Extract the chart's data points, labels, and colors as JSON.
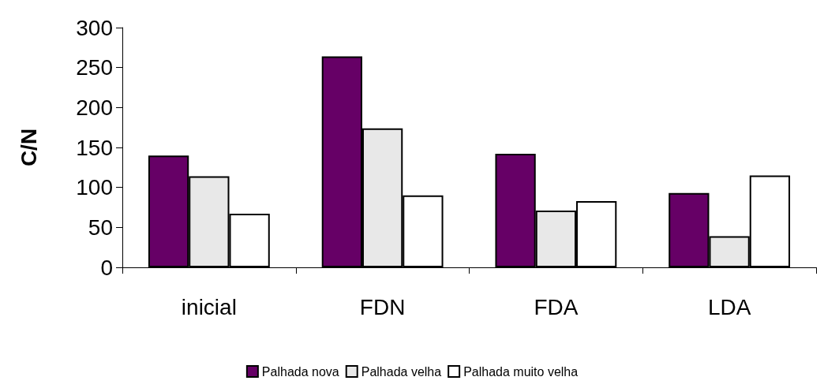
{
  "chart_data": {
    "type": "bar",
    "ylabel": "C/N",
    "categories": [
      "inicial",
      "FDN",
      "FDA",
      "LDA"
    ],
    "series": [
      {
        "name": "Palhada nova",
        "color": "#660066",
        "values": [
          140,
          264,
          142,
          93
        ]
      },
      {
        "name": "Palhada velha",
        "color": "#e8e8e8",
        "values": [
          114,
          174,
          71,
          39
        ]
      },
      {
        "name": "Palhada muito velha",
        "color": "#ffffff",
        "values": [
          67,
          90,
          83,
          115
        ]
      }
    ],
    "ylim": [
      0,
      300
    ],
    "yticks": [
      0,
      50,
      100,
      150,
      200,
      250,
      300
    ],
    "grid": false,
    "legend": "bottom"
  }
}
